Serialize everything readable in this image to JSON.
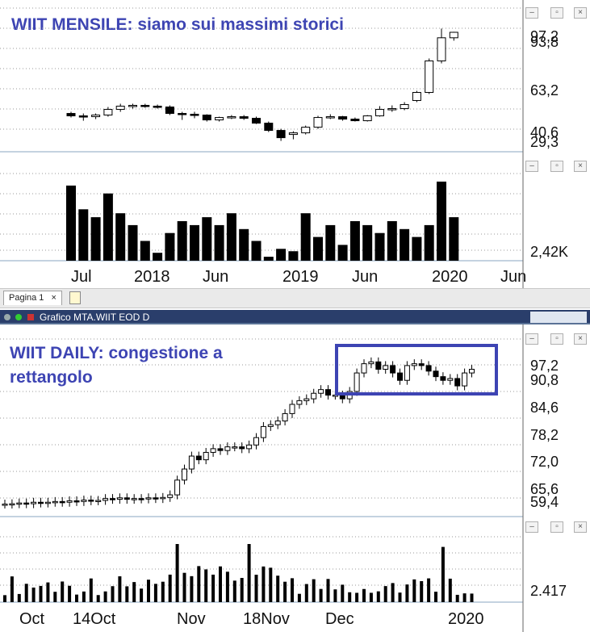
{
  "monthly": {
    "annotation": "WIIT MENSILE: siamo sui massimi storici",
    "price_labels": [
      "97,2",
      "93,8",
      "63,2",
      "40,6",
      "29,3"
    ],
    "volume_label": "2,42K",
    "x_labels": [
      "Jul",
      "2018",
      "Jun",
      "2019",
      "Jun",
      "2020",
      "Jun"
    ]
  },
  "tabbar": {
    "tab_label": "Pagina 1",
    "close_glyph": "×"
  },
  "daily_titlebar": {
    "title": "Grafico MTA.WIIT EOD D"
  },
  "daily": {
    "annotation_line1": "WIIT DAILY: congestione a",
    "annotation_line2": "rettangolo",
    "price_labels": [
      "97,2",
      "90,8",
      "84,6",
      "78,2",
      "72,0",
      "65,6",
      "59,4"
    ],
    "volume_label": "2.417",
    "x_labels": [
      "Oct",
      "14Oct",
      "Nov",
      "18Nov",
      "Dec",
      "2020"
    ]
  },
  "colors": {
    "annotation": "#3d44b3",
    "rectangle": "#3d44b3",
    "titlebar": "#2a3e6b"
  },
  "chart_data": [
    {
      "type": "candlestick",
      "title": "WIIT MENSILE: siamo sui massimi storici",
      "ylim": [
        29.3,
        97.2
      ],
      "candles_approx": [
        {
          "o": 47.0,
          "h": 48.0,
          "l": 44.5,
          "c": 45.5
        },
        {
          "o": 45.5,
          "h": 47.0,
          "l": 42.5,
          "c": 45.0
        },
        {
          "o": 45.0,
          "h": 47.0,
          "l": 43.5,
          "c": 46.0
        },
        {
          "o": 46.0,
          "h": 51.0,
          "l": 45.0,
          "c": 49.5
        },
        {
          "o": 49.5,
          "h": 53.0,
          "l": 48.0,
          "c": 51.5
        },
        {
          "o": 51.5,
          "h": 53.0,
          "l": 50.0,
          "c": 52.0
        },
        {
          "o": 52.0,
          "h": 53.0,
          "l": 50.5,
          "c": 51.5
        },
        {
          "o": 51.5,
          "h": 52.5,
          "l": 50.0,
          "c": 51.0
        },
        {
          "o": 51.0,
          "h": 52.0,
          "l": 46.0,
          "c": 47.0
        },
        {
          "o": 47.0,
          "h": 48.0,
          "l": 43.0,
          "c": 46.5
        },
        {
          "o": 46.5,
          "h": 48.0,
          "l": 44.0,
          "c": 46.0
        },
        {
          "o": 46.0,
          "h": 46.5,
          "l": 42.0,
          "c": 43.0
        },
        {
          "o": 43.0,
          "h": 45.0,
          "l": 42.0,
          "c": 44.5
        },
        {
          "o": 44.5,
          "h": 46.0,
          "l": 43.5,
          "c": 45.0
        },
        {
          "o": 45.0,
          "h": 46.0,
          "l": 43.0,
          "c": 44.0
        },
        {
          "o": 44.0,
          "h": 45.0,
          "l": 40.5,
          "c": 41.0
        },
        {
          "o": 41.0,
          "h": 42.0,
          "l": 35.5,
          "c": 36.5
        },
        {
          "o": 36.5,
          "h": 37.5,
          "l": 30.0,
          "c": 32.0
        },
        {
          "o": 34.0,
          "h": 36.0,
          "l": 31.0,
          "c": 35.0
        },
        {
          "o": 35.0,
          "h": 39.5,
          "l": 34.0,
          "c": 38.5
        },
        {
          "o": 38.5,
          "h": 45.5,
          "l": 37.5,
          "c": 44.5
        },
        {
          "o": 44.5,
          "h": 46.5,
          "l": 43.5,
          "c": 45.0
        },
        {
          "o": 45.0,
          "h": 45.5,
          "l": 42.5,
          "c": 43.5
        },
        {
          "o": 43.5,
          "h": 44.5,
          "l": 42.0,
          "c": 42.5
        },
        {
          "o": 42.5,
          "h": 46.0,
          "l": 42.0,
          "c": 45.5
        },
        {
          "o": 45.5,
          "h": 51.5,
          "l": 45.0,
          "c": 49.5
        },
        {
          "o": 49.5,
          "h": 52.0,
          "l": 48.0,
          "c": 50.0
        },
        {
          "o": 50.0,
          "h": 54.0,
          "l": 49.0,
          "c": 52.5
        },
        {
          "o": 55.0,
          "h": 61.0,
          "l": 54.0,
          "c": 60.0
        },
        {
          "o": 60.0,
          "h": 81.0,
          "l": 59.0,
          "c": 79.5
        },
        {
          "o": 79.5,
          "h": 99.5,
          "l": 78.0,
          "c": 93.8
        },
        {
          "o": 93.8,
          "h": 97.5,
          "l": 92.0,
          "c": 97.2
        }
      ],
      "volume_label_value": "2,42K"
    },
    {
      "type": "candlestick",
      "title": "WIIT DAILY: congestione a rettangolo",
      "ylim": [
        59.4,
        97.2
      ],
      "series_approx_closes": [
        59.5,
        59.6,
        59.8,
        59.6,
        60.0,
        59.8,
        60.0,
        60.2,
        60.0,
        60.4,
        60.2,
        60.6,
        60.4,
        60.5,
        61.0,
        60.8,
        61.2,
        60.8,
        61.0,
        60.9,
        61.2,
        61.0,
        61.3,
        62.0,
        66.0,
        69.0,
        72.5,
        71.5,
        73.5,
        74.5,
        74.0,
        75.0,
        75.0,
        74.5,
        75.5,
        77.5,
        80.5,
        81.0,
        82.0,
        84.0,
        86.5,
        87.5,
        88.0,
        89.5,
        90.5,
        89.0,
        89.0,
        88.0,
        90.0,
        95.0,
        97.5,
        98.0,
        96.0,
        97.0,
        95.0,
        93.0,
        97.0,
        97.5,
        97.0,
        95.5,
        94.0,
        93.0,
        93.5,
        91.5,
        95.0,
        96.0
      ],
      "volume_label_value": "2.417"
    }
  ]
}
